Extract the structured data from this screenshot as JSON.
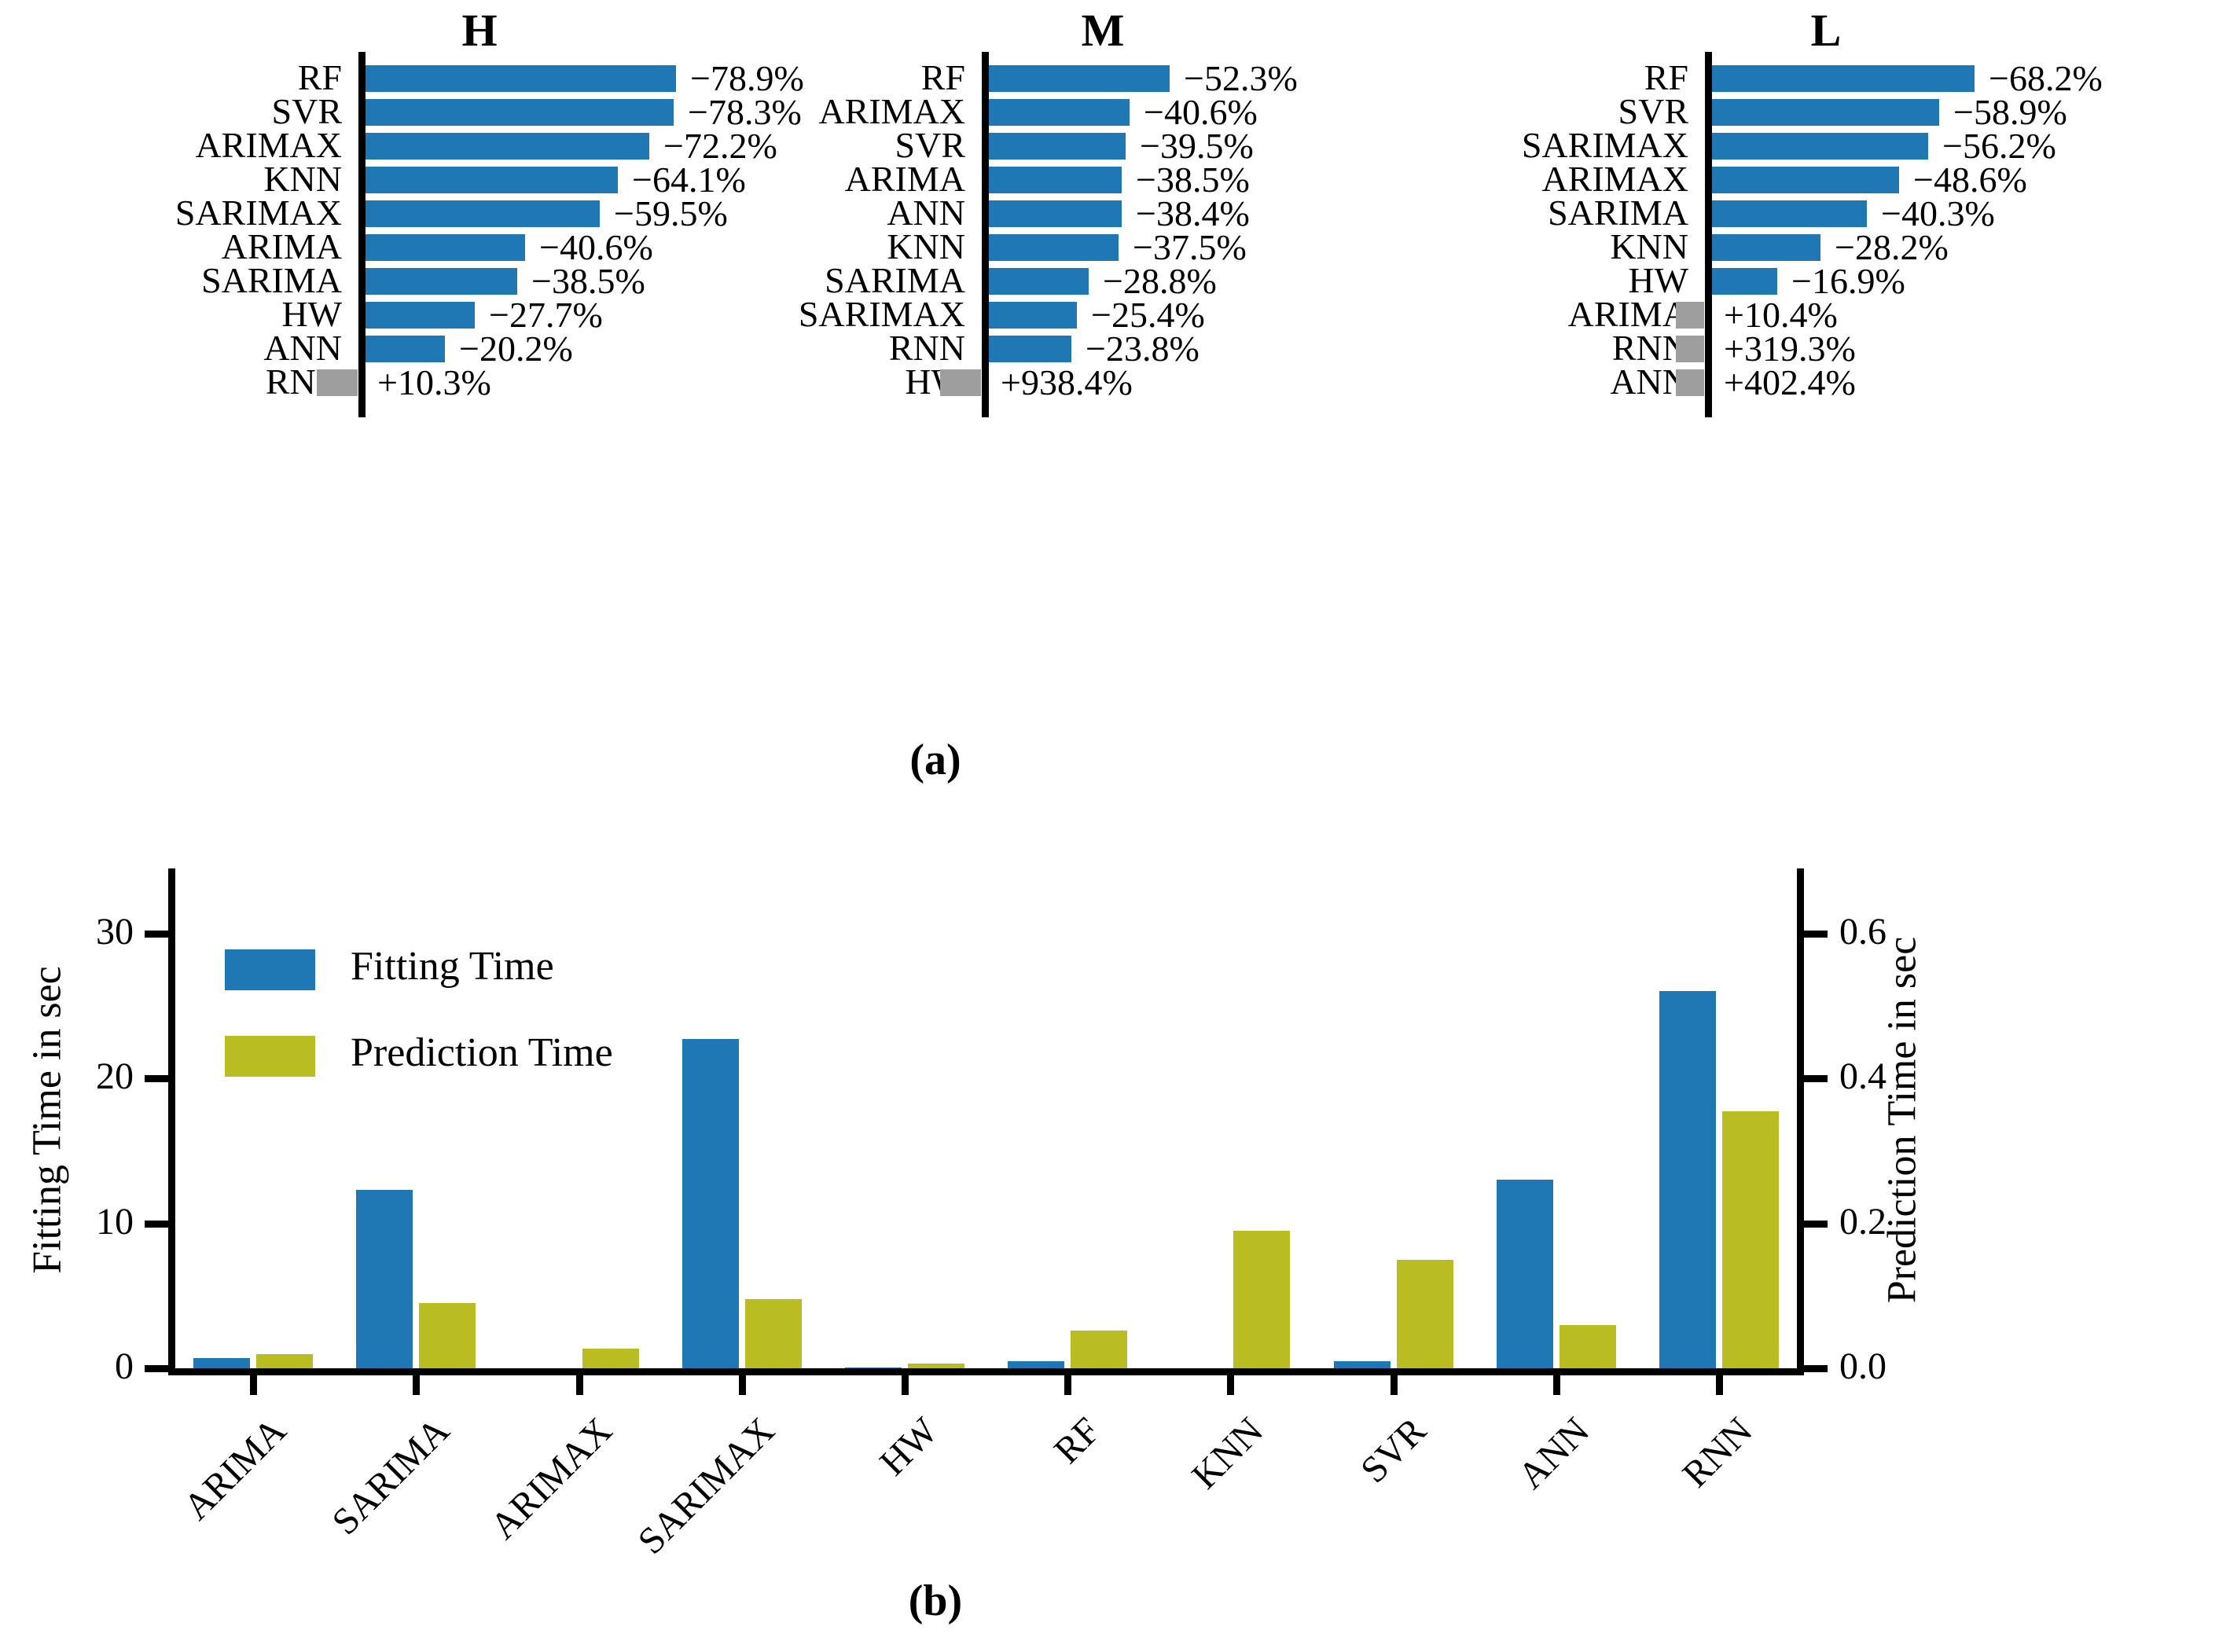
{
  "figure": {
    "caption_a": "(a)",
    "caption_b": "(b)"
  },
  "colors": {
    "bar_blue": "#1f77b4",
    "bar_olive": "#b9bd22",
    "bar_gray": "#9e9e9e",
    "axis_black": "#000000"
  },
  "chart_data": [
    {
      "id": "panel-a-H",
      "type": "bar",
      "orientation": "horizontal",
      "title": "H",
      "note": "blue bars = negative % change (plotted right of axis), gray bars = positive % change (plotted left of axis, clipped)",
      "entries": [
        {
          "model": "RF",
          "pct": -78.9,
          "label": "−78.9%"
        },
        {
          "model": "SVR",
          "pct": -78.3,
          "label": "−78.3%"
        },
        {
          "model": "ARIMAX",
          "pct": -72.2,
          "label": "−72.2%"
        },
        {
          "model": "KNN",
          "pct": -64.1,
          "label": "−64.1%"
        },
        {
          "model": "SARIMAX",
          "pct": -59.5,
          "label": "−59.5%"
        },
        {
          "model": "ARIMA",
          "pct": -40.6,
          "label": "−40.6%"
        },
        {
          "model": "SARIMA",
          "pct": -38.5,
          "label": "−38.5%"
        },
        {
          "model": "HW",
          "pct": -27.7,
          "label": "−27.7%"
        },
        {
          "model": "ANN",
          "pct": -20.2,
          "label": "−20.2%"
        },
        {
          "model": "RNN",
          "pct": 10.3,
          "label": "+10.3%"
        }
      ]
    },
    {
      "id": "panel-a-M",
      "type": "bar",
      "orientation": "horizontal",
      "title": "M",
      "entries": [
        {
          "model": "RF",
          "pct": -52.3,
          "label": "−52.3%"
        },
        {
          "model": "ARIMAX",
          "pct": -40.6,
          "label": "−40.6%"
        },
        {
          "model": "SVR",
          "pct": -39.5,
          "label": "−39.5%"
        },
        {
          "model": "ARIMA",
          "pct": -38.5,
          "label": "−38.5%"
        },
        {
          "model": "ANN",
          "pct": -38.4,
          "label": "−38.4%"
        },
        {
          "model": "KNN",
          "pct": -37.5,
          "label": "−37.5%"
        },
        {
          "model": "SARIMA",
          "pct": -28.8,
          "label": "−28.8%"
        },
        {
          "model": "SARIMAX",
          "pct": -25.4,
          "label": "−25.4%"
        },
        {
          "model": "RNN",
          "pct": -23.8,
          "label": "−23.8%"
        },
        {
          "model": "HW",
          "pct": 938.4,
          "label": "+938.4%"
        }
      ]
    },
    {
      "id": "panel-a-L",
      "type": "bar",
      "orientation": "horizontal",
      "title": "L",
      "entries": [
        {
          "model": "RF",
          "pct": -68.2,
          "label": "−68.2%"
        },
        {
          "model": "SVR",
          "pct": -58.9,
          "label": "−58.9%"
        },
        {
          "model": "SARIMAX",
          "pct": -56.2,
          "label": "−56.2%"
        },
        {
          "model": "ARIMAX",
          "pct": -48.6,
          "label": "−48.6%"
        },
        {
          "model": "SARIMA",
          "pct": -40.3,
          "label": "−40.3%"
        },
        {
          "model": "KNN",
          "pct": -28.2,
          "label": "−28.2%"
        },
        {
          "model": "HW",
          "pct": -16.9,
          "label": "−16.9%"
        },
        {
          "model": "ARIMA",
          "pct": 10.4,
          "label": "+10.4%"
        },
        {
          "model": "RNN",
          "pct": 319.3,
          "label": "+319.3%"
        },
        {
          "model": "ANN",
          "pct": 402.4,
          "label": "+402.4%"
        }
      ]
    },
    {
      "id": "panel-b",
      "type": "bar",
      "orientation": "vertical",
      "categories": [
        "ARIMA",
        "SARIMA",
        "ARIMAX",
        "SARIMAX",
        "HW",
        "RF",
        "KNN",
        "SVR",
        "ANN",
        "RNN"
      ],
      "series": [
        {
          "name": "Fitting Time",
          "axis": "left",
          "values": [
            0.7,
            12.3,
            0.02,
            22.7,
            0.05,
            0.5,
            0.02,
            0.5,
            13.0,
            26.0
          ]
        },
        {
          "name": "Prediction Time",
          "axis": "right",
          "values": [
            0.02,
            0.09,
            0.027,
            0.095,
            0.007,
            0.052,
            0.19,
            0.15,
            0.06,
            0.355
          ]
        }
      ],
      "left_axis": {
        "label": "Fitting Time in sec",
        "ticks": [
          "0",
          "10",
          "20",
          "30"
        ],
        "tick_values": [
          0,
          10,
          20,
          30
        ],
        "max": 35
      },
      "right_axis": {
        "label": "Prediction Time in sec",
        "ticks": [
          "0.0",
          "0.2",
          "0.4",
          "0.6"
        ],
        "tick_values": [
          0.0,
          0.2,
          0.4,
          0.6
        ],
        "max": 0.7
      },
      "legend": [
        "Fitting Time",
        "Prediction Time"
      ],
      "grid": false,
      "legend_position": "upper left"
    }
  ]
}
